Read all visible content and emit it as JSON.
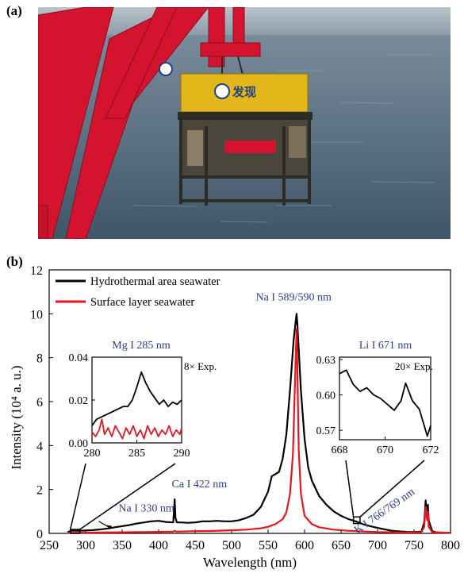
{
  "panel_labels": {
    "a": "(a)",
    "b": "(b)"
  },
  "photo": {
    "vehicle_caption_cn": "发现",
    "colors": {
      "sea": "#5d7385",
      "crane": "#d4142e",
      "vehicle_top": "#e3b719",
      "frame": "#2d2b26"
    }
  },
  "chart_data": [
    {
      "type": "line",
      "xlabel": "Wavelength (nm)",
      "ylabel": "Intensity (10⁴ a. u.)",
      "xlim": [
        250,
        800
      ],
      "ylim": [
        0,
        12
      ],
      "xticks": [
        250,
        300,
        350,
        400,
        450,
        500,
        550,
        600,
        650,
        700,
        750,
        800
      ],
      "yticks": [
        0,
        2,
        4,
        6,
        8,
        10,
        12
      ],
      "legend": {
        "position": "top-left",
        "entries": [
          "Hydrothermal area seawater",
          "Surface layer seawater"
        ]
      },
      "series": [
        {
          "name": "Hydrothermal area seawater",
          "color": "#000000",
          "points": [
            [
              275,
              0.05
            ],
            [
              280,
              0.12
            ],
            [
              285,
              0.12
            ],
            [
              290,
              0.12
            ],
            [
              300,
              0.13
            ],
            [
              310,
              0.15
            ],
            [
              320,
              0.18
            ],
            [
              330,
              0.22
            ],
            [
              340,
              0.28
            ],
            [
              350,
              0.33
            ],
            [
              360,
              0.38
            ],
            [
              370,
              0.45
            ],
            [
              380,
              0.5
            ],
            [
              390,
              0.55
            ],
            [
              400,
              0.57
            ],
            [
              410,
              0.52
            ],
            [
              420,
              0.5
            ],
            [
              421,
              1.0
            ],
            [
              422,
              1.55
            ],
            [
              423,
              0.7
            ],
            [
              425,
              0.5
            ],
            [
              430,
              0.5
            ],
            [
              440,
              0.48
            ],
            [
              450,
              0.5
            ],
            [
              460,
              0.55
            ],
            [
              470,
              0.55
            ],
            [
              480,
              0.57
            ],
            [
              490,
              0.55
            ],
            [
              500,
              0.55
            ],
            [
              510,
              0.6
            ],
            [
              520,
              0.7
            ],
            [
              530,
              0.85
            ],
            [
              540,
              1.2
            ],
            [
              550,
              1.9
            ],
            [
              555,
              2.6
            ],
            [
              560,
              2.7
            ],
            [
              565,
              2.8
            ],
            [
              570,
              3.4
            ],
            [
              575,
              4.5
            ],
            [
              580,
              6.5
            ],
            [
              585,
              8.8
            ],
            [
              589,
              10.0
            ],
            [
              590,
              9.6
            ],
            [
              592,
              8.4
            ],
            [
              595,
              6.5
            ],
            [
              600,
              4.3
            ],
            [
              605,
              3.0
            ],
            [
              610,
              2.4
            ],
            [
              620,
              1.7
            ],
            [
              630,
              1.3
            ],
            [
              640,
              1.0
            ],
            [
              650,
              0.8
            ],
            [
              660,
              0.65
            ],
            [
              670,
              0.55
            ],
            [
              680,
              0.42
            ],
            [
              690,
              0.33
            ],
            [
              700,
              0.25
            ],
            [
              710,
              0.18
            ],
            [
              720,
              0.12
            ],
            [
              730,
              0.09
            ],
            [
              740,
              0.07
            ],
            [
              750,
              0.06
            ],
            [
              760,
              0.08
            ],
            [
              764,
              0.5
            ],
            [
              766,
              1.5
            ],
            [
              767,
              1.1
            ],
            [
              768,
              0.8
            ],
            [
              769,
              1.3
            ],
            [
              770,
              0.6
            ],
            [
              775,
              0.1
            ],
            [
              780,
              0.05
            ],
            [
              790,
              0.03
            ],
            [
              800,
              0.02
            ]
          ]
        },
        {
          "name": "Surface layer seawater",
          "color": "#e8141e",
          "points": [
            [
              275,
              0.02
            ],
            [
              280,
              0.03
            ],
            [
              300,
              0.03
            ],
            [
              320,
              0.04
            ],
            [
              350,
              0.05
            ],
            [
              380,
              0.06
            ],
            [
              400,
              0.07
            ],
            [
              420,
              0.08
            ],
            [
              422,
              0.12
            ],
            [
              424,
              0.08
            ],
            [
              450,
              0.1
            ],
            [
              470,
              0.11
            ],
            [
              500,
              0.14
            ],
            [
              520,
              0.17
            ],
            [
              540,
              0.23
            ],
            [
              550,
              0.3
            ],
            [
              560,
              0.42
            ],
            [
              570,
              0.65
            ],
            [
              575,
              0.95
            ],
            [
              580,
              1.8
            ],
            [
              584,
              3.6
            ],
            [
              587,
              7.0
            ],
            [
              589,
              9.3
            ],
            [
              590,
              7.8
            ],
            [
              592,
              3.8
            ],
            [
              595,
              1.8
            ],
            [
              600,
              0.8
            ],
            [
              610,
              0.42
            ],
            [
              620,
              0.28
            ],
            [
              640,
              0.17
            ],
            [
              660,
              0.12
            ],
            [
              680,
              0.09
            ],
            [
              700,
              0.06
            ],
            [
              720,
              0.05
            ],
            [
              740,
              0.04
            ],
            [
              760,
              0.05
            ],
            [
              764,
              0.3
            ],
            [
              766,
              1.2
            ],
            [
              767,
              0.9
            ],
            [
              768,
              0.6
            ],
            [
              769,
              1.0
            ],
            [
              770,
              0.3
            ],
            [
              775,
              0.05
            ],
            [
              800,
              0.02
            ]
          ]
        }
      ],
      "annotations": [
        {
          "text": "Na I 589/590 nm",
          "x": 585,
          "y": 10.6,
          "color": "#2b3d94"
        },
        {
          "text": "Ca I 422 nm",
          "x": 418,
          "y": 2.1,
          "color": "#2b3d94"
        },
        {
          "text": "Na I 330 nm",
          "x": 345,
          "y": 1.0,
          "color": "#2b3d94"
        },
        {
          "text": "K I 766/769 nm",
          "x": 712,
          "y": 0.9,
          "color": "#2b3d94"
        }
      ]
    },
    {
      "type": "line",
      "title": "Mg I 285 nm",
      "note": "8× Exp.",
      "xlim": [
        280,
        290
      ],
      "ylim": [
        0,
        0.04
      ],
      "xticks": [
        280,
        285,
        290
      ],
      "yticks": [
        "0.00",
        "0.02",
        "0.04"
      ],
      "series": [
        {
          "name": "Hydrothermal area seawater",
          "color": "#000000",
          "points": [
            [
              280,
              0.008
            ],
            [
              280.5,
              0.011
            ],
            [
              281,
              0.012
            ],
            [
              281.5,
              0.013
            ],
            [
              282,
              0.014
            ],
            [
              282.5,
              0.015
            ],
            [
              283,
              0.016
            ],
            [
              283.5,
              0.017
            ],
            [
              284,
              0.017
            ],
            [
              284.5,
              0.02
            ],
            [
              285,
              0.026
            ],
            [
              285.5,
              0.033
            ],
            [
              286,
              0.028
            ],
            [
              286.5,
              0.024
            ],
            [
              287,
              0.021
            ],
            [
              287.5,
              0.018
            ],
            [
              288,
              0.02
            ],
            [
              288.5,
              0.017
            ],
            [
              289,
              0.019
            ],
            [
              289.5,
              0.018
            ],
            [
              290,
              0.02
            ]
          ]
        },
        {
          "name": "Surface layer seawater",
          "color": "#e8141e",
          "points": [
            [
              280,
              0.005
            ],
            [
              280.4,
              0.003
            ],
            [
              280.8,
              0.006
            ],
            [
              281.1,
              0.011
            ],
            [
              281.4,
              0.004
            ],
            [
              281.8,
              0.007
            ],
            [
              282.2,
              0.003
            ],
            [
              282.6,
              0.008
            ],
            [
              283,
              0.005
            ],
            [
              283.4,
              0.002
            ],
            [
              283.8,
              0.007
            ],
            [
              284.2,
              0.004
            ],
            [
              284.6,
              0.008
            ],
            [
              285,
              0.003
            ],
            [
              285.4,
              0.006
            ],
            [
              285.8,
              0.002
            ],
            [
              286.2,
              0.008
            ],
            [
              286.6,
              0.004
            ],
            [
              287,
              0.007
            ],
            [
              287.4,
              0.003
            ],
            [
              287.8,
              0.006
            ],
            [
              288.2,
              0.004
            ],
            [
              288.6,
              0.008
            ],
            [
              289,
              0.003
            ],
            [
              289.4,
              0.006
            ],
            [
              289.8,
              0.004
            ],
            [
              290,
              0.007
            ]
          ]
        }
      ]
    },
    {
      "type": "line",
      "title": "Li I 671 nm",
      "note": "20× Exp.",
      "xlim": [
        668,
        672
      ],
      "ylim": [
        0.562,
        0.632
      ],
      "xticks": [
        668,
        670,
        672
      ],
      "yticks": [
        "0.57",
        "0.60",
        "0.63"
      ],
      "series": [
        {
          "name": "Hydrothermal area seawater",
          "color": "#000000",
          "points": [
            [
              668,
              0.618
            ],
            [
              668.3,
              0.621
            ],
            [
              668.6,
              0.609
            ],
            [
              668.9,
              0.603
            ],
            [
              669.2,
              0.606
            ],
            [
              669.5,
              0.6
            ],
            [
              669.8,
              0.597
            ],
            [
              670.1,
              0.592
            ],
            [
              670.4,
              0.587
            ],
            [
              670.7,
              0.595
            ],
            [
              670.9,
              0.61
            ],
            [
              671.2,
              0.595
            ],
            [
              671.5,
              0.588
            ],
            [
              671.7,
              0.575
            ],
            [
              671.85,
              0.565
            ],
            [
              672,
              0.574
            ]
          ]
        }
      ]
    }
  ]
}
